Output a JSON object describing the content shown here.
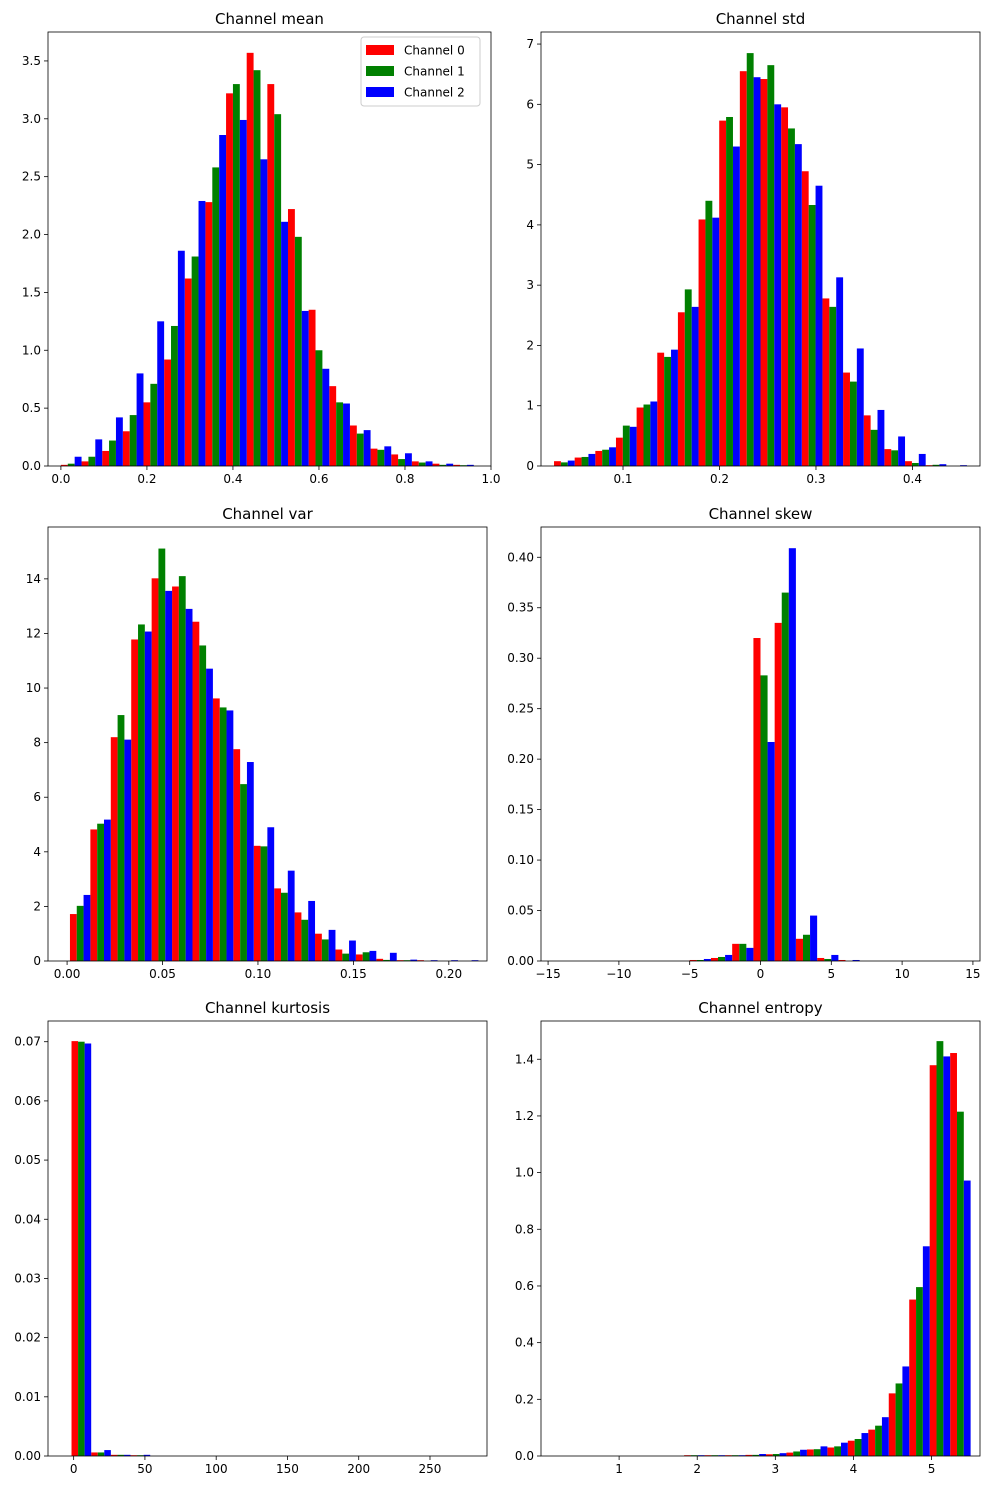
{
  "series_colors": [
    "#ff0000",
    "#008000",
    "#0000ff"
  ],
  "legend": {
    "placement": "top-right",
    "entries": [
      "Channel 0",
      "Channel 1",
      "Channel 2"
    ]
  },
  "chart_data": [
    {
      "type": "bar",
      "title": "Channel mean",
      "xlabel": "",
      "ylabel": "",
      "xlim": [
        -0.03,
        1.0
      ],
      "ylim": [
        0,
        3.75
      ],
      "xticks": [
        0.0,
        0.2,
        0.4,
        0.6,
        0.8,
        1.0
      ],
      "xtick_labels": [
        "0.0",
        "0.2",
        "0.4",
        "0.6",
        "0.8",
        "1.0"
      ],
      "yticks": [
        0.0,
        0.5,
        1.0,
        1.5,
        2.0,
        2.5,
        3.0,
        3.5
      ],
      "ytick_labels": [
        "0.0",
        "0.5",
        "1.0",
        "1.5",
        "2.0",
        "2.5",
        "3.0",
        "3.5"
      ],
      "bin_start": 0.0,
      "bin_width": 0.048,
      "series": [
        {
          "name": "Channel 0",
          "values": [
            0.01,
            0.04,
            0.13,
            0.3,
            0.55,
            0.92,
            1.62,
            2.28,
            3.22,
            3.57,
            3.3,
            2.22,
            1.35,
            0.69,
            0.35,
            0.15,
            0.1,
            0.04,
            0.02,
            0.01
          ]
        },
        {
          "name": "Channel 1",
          "values": [
            0.02,
            0.08,
            0.22,
            0.44,
            0.71,
            1.21,
            1.81,
            2.58,
            3.3,
            3.42,
            3.04,
            1.98,
            1.0,
            0.55,
            0.28,
            0.14,
            0.06,
            0.03,
            0.01,
            0.005
          ]
        },
        {
          "name": "Channel 2",
          "values": [
            0.08,
            0.23,
            0.42,
            0.8,
            1.25,
            1.86,
            2.29,
            2.86,
            2.99,
            2.65,
            2.11,
            1.34,
            0.84,
            0.54,
            0.31,
            0.17,
            0.11,
            0.04,
            0.02,
            0.01
          ]
        }
      ]
    },
    {
      "type": "bar",
      "title": "Channel std",
      "xlabel": "",
      "ylabel": "",
      "xlim": [
        0.015,
        0.47
      ],
      "ylim": [
        0,
        7.2
      ],
      "xticks": [
        0.1,
        0.2,
        0.3,
        0.4
      ],
      "xtick_labels": [
        "0.1",
        "0.2",
        "0.3",
        "0.4"
      ],
      "yticks": [
        0,
        1,
        2,
        3,
        4,
        5,
        6,
        7
      ],
      "ytick_labels": [
        "0",
        "1",
        "2",
        "3",
        "4",
        "5",
        "6",
        "7"
      ],
      "bin_start": 0.0285,
      "bin_width": 0.0214,
      "series": [
        {
          "name": "Channel 0",
          "values": [
            0.08,
            0.14,
            0.25,
            0.47,
            0.97,
            1.88,
            2.55,
            4.09,
            5.73,
            6.55,
            6.42,
            5.95,
            4.89,
            2.78,
            1.55,
            0.84,
            0.28,
            0.08,
            0.01,
            0.0
          ]
        },
        {
          "name": "Channel 1",
          "values": [
            0.06,
            0.15,
            0.27,
            0.67,
            1.02,
            1.81,
            2.93,
            4.4,
            5.79,
            6.85,
            6.65,
            5.6,
            4.33,
            2.64,
            1.4,
            0.6,
            0.26,
            0.05,
            0.02,
            0.0
          ]
        },
        {
          "name": "Channel 2",
          "values": [
            0.09,
            0.2,
            0.31,
            0.65,
            1.07,
            1.93,
            2.64,
            4.12,
            5.3,
            6.45,
            6.0,
            5.34,
            4.65,
            3.13,
            1.95,
            0.93,
            0.49,
            0.2,
            0.03,
            0.01
          ]
        }
      ]
    },
    {
      "type": "bar",
      "title": "Channel var",
      "xlabel": "",
      "ylabel": "",
      "xlim": [
        -0.01,
        0.22
      ],
      "ylim": [
        0,
        15.9
      ],
      "xticks": [
        0.0,
        0.05,
        0.1,
        0.15,
        0.2
      ],
      "xtick_labels": [
        "0.00",
        "0.05",
        "0.10",
        "0.15",
        "0.20"
      ],
      "yticks": [
        0,
        2,
        4,
        6,
        8,
        10,
        12,
        14
      ],
      "ytick_labels": [
        "0",
        "2",
        "4",
        "6",
        "8",
        "10",
        "12",
        "14"
      ],
      "bin_start": 0.0015,
      "bin_width": 0.0107,
      "series": [
        {
          "name": "Channel 0",
          "values": [
            1.72,
            4.82,
            8.2,
            11.78,
            14.02,
            13.72,
            12.43,
            9.62,
            7.76,
            4.22,
            2.66,
            1.78,
            1.0,
            0.42,
            0.24,
            0.08,
            0.03,
            0.02,
            0.0,
            0.0
          ]
        },
        {
          "name": "Channel 1",
          "values": [
            2.02,
            5.03,
            9.01,
            12.33,
            15.11,
            14.1,
            11.56,
            9.29,
            6.48,
            4.2,
            2.5,
            1.51,
            0.79,
            0.27,
            0.32,
            0.04,
            0.02,
            0.0,
            0.0,
            0.0
          ]
        },
        {
          "name": "Channel 2",
          "values": [
            2.42,
            5.18,
            8.11,
            12.07,
            13.56,
            12.9,
            10.71,
            9.18,
            7.29,
            4.9,
            3.31,
            2.2,
            1.14,
            0.75,
            0.37,
            0.3,
            0.05,
            0.02,
            0.02,
            0.01
          ]
        }
      ]
    },
    {
      "type": "bar",
      "title": "Channel skew",
      "xlabel": "",
      "ylabel": "",
      "xlim": [
        -15.5,
        15.5
      ],
      "ylim": [
        0,
        0.43
      ],
      "xticks": [
        -15,
        -10,
        -5,
        0,
        5,
        10,
        15
      ],
      "xtick_labels": [
        "−15",
        "−10",
        "−5",
        "0",
        "5",
        "10",
        "15"
      ],
      "yticks": [
        0.0,
        0.05,
        0.1,
        0.15,
        0.2,
        0.25,
        0.3,
        0.35,
        0.4
      ],
      "ytick_labels": [
        "0.00",
        "0.05",
        "0.10",
        "0.15",
        "0.20",
        "0.25",
        "0.30",
        "0.35",
        "0.40"
      ],
      "bin_start": -6.5,
      "bin_width": 1.5,
      "series": [
        {
          "name": "Channel 0",
          "values": [
            0.0,
            0.001,
            0.003,
            0.017,
            0.32,
            0.335,
            0.022,
            0.003,
            0.001
          ]
        },
        {
          "name": "Channel 1",
          "values": [
            0.0,
            0.001,
            0.004,
            0.017,
            0.283,
            0.365,
            0.026,
            0.002,
            0.0
          ]
        },
        {
          "name": "Channel 2",
          "values": [
            0.0,
            0.002,
            0.006,
            0.013,
            0.217,
            0.409,
            0.045,
            0.006,
            0.001
          ]
        }
      ]
    },
    {
      "type": "bar",
      "title": "Channel kurtosis",
      "xlabel": "",
      "ylabel": "",
      "xlim": [
        -18,
        290
      ],
      "ylim": [
        0,
        0.0735
      ],
      "xticks": [
        0,
        50,
        100,
        150,
        200,
        250
      ],
      "xtick_labels": [
        "0",
        "50",
        "100",
        "150",
        "200",
        "250"
      ],
      "yticks": [
        0.0,
        0.01,
        0.02,
        0.03,
        0.04,
        0.05,
        0.06,
        0.07
      ],
      "ytick_labels": [
        "0.00",
        "0.01",
        "0.02",
        "0.03",
        "0.04",
        "0.05",
        "0.06",
        "0.07"
      ],
      "bin_start": -1.5,
      "bin_width": 13.8,
      "series": [
        {
          "name": "Channel 0",
          "values": [
            0.0701,
            0.0006,
            0.0002,
            5e-05
          ]
        },
        {
          "name": "Channel 1",
          "values": [
            0.07,
            0.0006,
            0.0002,
            5e-05
          ]
        },
        {
          "name": "Channel 2",
          "values": [
            0.0697,
            0.001,
            0.0002,
            0.0002
          ]
        }
      ]
    },
    {
      "type": "bar",
      "title": "Channel entropy",
      "xlabel": "",
      "ylabel": "",
      "xlim": [
        0.0,
        5.62
      ],
      "ylim": [
        0,
        1.535
      ],
      "xticks": [
        1,
        2,
        3,
        4,
        5
      ],
      "xtick_labels": [
        "1",
        "2",
        "3",
        "4",
        "5"
      ],
      "yticks": [
        0.0,
        0.2,
        0.4,
        0.6,
        0.8,
        1.0,
        1.2,
        1.4
      ],
      "ytick_labels": [
        "0.0",
        "0.2",
        "0.4",
        "0.6",
        "0.8",
        "1.0",
        "1.2",
        "1.4"
      ],
      "bin_start": 0.26,
      "bin_width": 0.262,
      "series": [
        {
          "name": "Channel 0",
          "values": [
            0.0,
            0.0,
            0.0,
            0.0,
            0.0,
            0.0,
            0.0001,
            0.0003,
            0.0008,
            0.004,
            0.006,
            0.012,
            0.023,
            0.03,
            0.054,
            0.093,
            0.221,
            0.552,
            1.379,
            1.422
          ]
        },
        {
          "name": "Channel 1",
          "values": [
            0.0,
            0.0,
            0.0,
            0.0,
            0.0,
            0.0,
            0.0001,
            0.0004,
            0.001,
            0.004,
            0.007,
            0.016,
            0.024,
            0.034,
            0.06,
            0.107,
            0.256,
            0.596,
            1.464,
            1.215
          ]
        },
        {
          "name": "Channel 2",
          "values": [
            0.0,
            0.0,
            0.0,
            0.0,
            0.0,
            0.0,
            0.0005,
            0.002,
            0.002,
            0.007,
            0.01,
            0.022,
            0.034,
            0.047,
            0.081,
            0.137,
            0.316,
            0.74,
            1.41,
            0.972
          ]
        }
      ]
    }
  ]
}
